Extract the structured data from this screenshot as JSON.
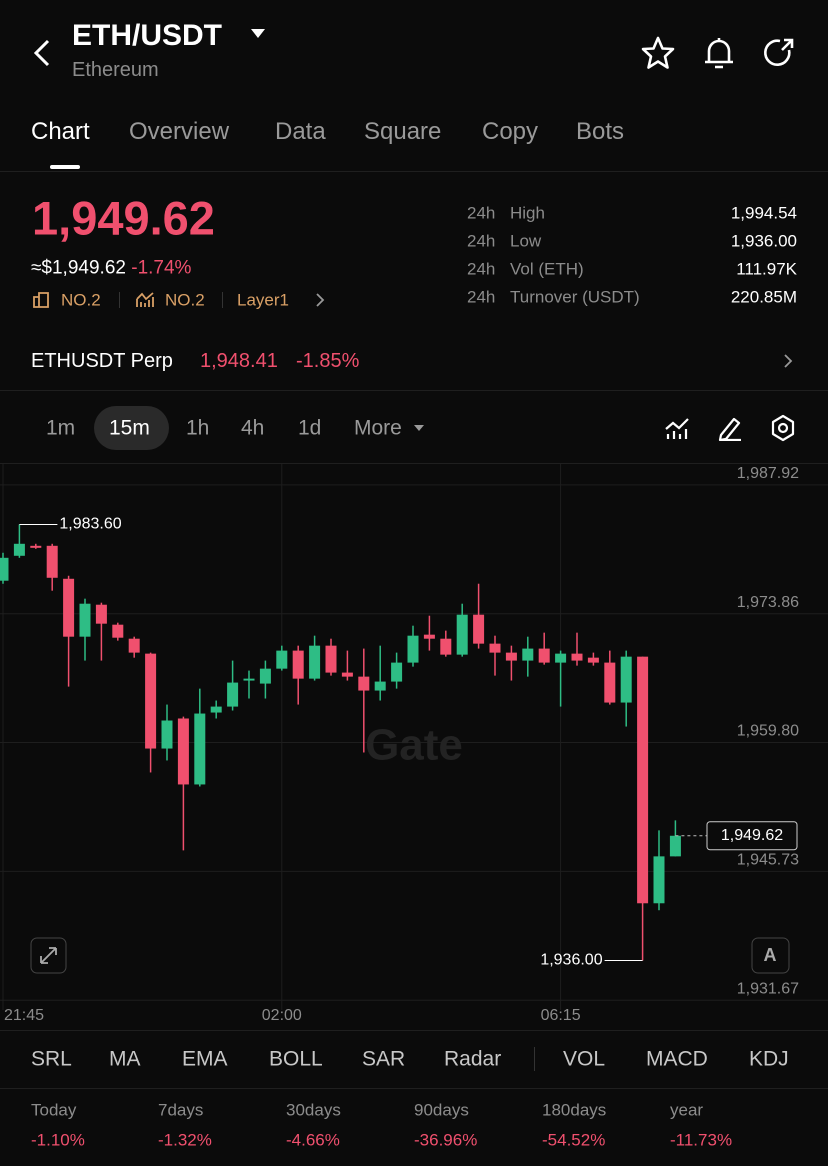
{
  "header": {
    "title": "ETH/USDT",
    "subtitle": "Ethereum"
  },
  "tabs": [
    "Chart",
    "Overview",
    "Data",
    "Square",
    "Copy",
    "Bots"
  ],
  "price": {
    "last": "1,949.62",
    "usd": "≈$1,949.62",
    "change": "-1.74%",
    "tags": [
      "NO.2",
      "NO.2",
      "Layer1"
    ]
  },
  "stats": [
    {
      "period": "24h",
      "label": "High",
      "value": "1,994.54"
    },
    {
      "period": "24h",
      "label": "Low",
      "value": "1,936.00"
    },
    {
      "period": "24h",
      "label": "Vol (ETH)",
      "value": "111.97K"
    },
    {
      "period": "24h",
      "label": "Turnover (USDT)",
      "value": "220.85M"
    }
  ],
  "perp": {
    "name": "ETHUSDT Perp",
    "price": "1,948.41",
    "change": "-1.85%"
  },
  "timeframes": [
    "1m",
    "15m",
    "1h",
    "4h",
    "1d",
    "More"
  ],
  "chart_data": {
    "type": "candlestick",
    "up_color": "#2ebd85",
    "down_color": "#f0506e",
    "grid": true,
    "watermark": "Gate",
    "auto_button": "A",
    "categories": [
      "21:45",
      null,
      null,
      null,
      null,
      null,
      null,
      null,
      null,
      null,
      null,
      null,
      null,
      null,
      null,
      null,
      null,
      "02:00",
      null,
      null,
      null,
      null,
      null,
      null,
      null,
      null,
      null,
      null,
      null,
      null,
      null,
      null,
      null,
      null,
      "06:15",
      null,
      null,
      null,
      null,
      null,
      null,
      null
    ],
    "open": [
      1977.46,
      1980.18,
      1981.27,
      1981.27,
      1977.67,
      1971.35,
      1974.84,
      1972.66,
      1971.13,
      1969.5,
      1959.14,
      1962.42,
      1955.22,
      1963.07,
      1963.72,
      1966.56,
      1966.23,
      1967.86,
      1969.83,
      1966.77,
      1970.37,
      1967.43,
      1966.99,
      1965.47,
      1966.45,
      1968.52,
      1971.57,
      1971.13,
      1969.39,
      1973.75,
      1970.59,
      1969.61,
      1968.74,
      1970.05,
      1968.52,
      1969.5,
      1969.06,
      1968.52,
      1964.16,
      1969.17,
      1942.25,
      1947.37
    ],
    "high": [
      1980.51,
      1983.6,
      1981.49,
      1981.49,
      1978.0,
      1975.5,
      1975.06,
      1972.88,
      1971.35,
      1969.61,
      1963.94,
      1962.63,
      1965.68,
      1964.38,
      1968.74,
      1967.65,
      1968.74,
      1970.37,
      1970.37,
      1971.46,
      1971.13,
      1969.83,
      1970.05,
      1970.37,
      1969.61,
      1972.55,
      1973.64,
      1972.01,
      1974.95,
      1977.13,
      1971.46,
      1970.37,
      1971.35,
      1971.79,
      1969.83,
      1971.79,
      1969.61,
      1969.83,
      1969.83,
      1969.17,
      1950.21,
      1951.3
    ],
    "low": [
      1977.13,
      1979.96,
      1980.94,
      1976.37,
      1965.9,
      1968.74,
      1968.74,
      1970.92,
      1969.06,
      1956.53,
      1957.84,
      1948.03,
      1955.0,
      1962.42,
      1963.29,
      1964.6,
      1964.6,
      1967.65,
      1963.94,
      1966.56,
      1967.1,
      1966.56,
      1958.71,
      1964.38,
      1965.68,
      1968.08,
      1969.83,
      1969.17,
      1969.17,
      1970.05,
      1967.1,
      1966.56,
      1966.99,
      1968.3,
      1963.72,
      1968.19,
      1968.19,
      1963.94,
      1961.54,
      1936.0,
      1941.49,
      1947.37
    ],
    "close": [
      1979.96,
      1981.49,
      1981.05,
      1977.78,
      1971.35,
      1974.95,
      1972.77,
      1971.24,
      1969.61,
      1959.14,
      1962.2,
      1955.22,
      1962.96,
      1963.72,
      1966.34,
      1966.77,
      1967.86,
      1969.83,
      1966.77,
      1970.37,
      1967.43,
      1966.99,
      1965.47,
      1966.45,
      1968.52,
      1971.46,
      1971.13,
      1969.39,
      1973.75,
      1970.59,
      1969.61,
      1968.74,
      1970.05,
      1968.52,
      1969.5,
      1968.74,
      1968.52,
      1964.16,
      1969.17,
      1942.25,
      1947.37,
      1949.62
    ],
    "ylim": [
      1930.6,
      1990.2
    ],
    "yticks": [
      {
        "value": 1987.92,
        "label": "1,987.92"
      },
      {
        "value": 1973.86,
        "label": "1,973.86"
      },
      {
        "value": 1959.8,
        "label": "1,959.80"
      },
      {
        "value": 1945.73,
        "label": "1,945.73"
      },
      {
        "value": 1931.67,
        "label": "1,931.67"
      }
    ],
    "annotations": [
      {
        "value": 1983.6,
        "label": "1,983.60"
      },
      {
        "value": 1936.0,
        "label": "1,936.00"
      }
    ],
    "last_price": {
      "value": 1949.62,
      "label": "1,949.62"
    }
  },
  "indicators": {
    "main": [
      "SRL",
      "MA",
      "EMA",
      "BOLL",
      "SAR",
      "Radar"
    ],
    "sub": [
      "VOL",
      "MACD",
      "KDJ"
    ]
  },
  "performance": [
    {
      "label": "Today",
      "value": "-1.10%"
    },
    {
      "label": "7days",
      "value": "-1.32%"
    },
    {
      "label": "30days",
      "value": "-4.66%"
    },
    {
      "label": "90days",
      "value": "-36.96%"
    },
    {
      "label": "180days",
      "value": "-54.52%"
    },
    {
      "label": "year",
      "value": "-11.73%"
    }
  ]
}
